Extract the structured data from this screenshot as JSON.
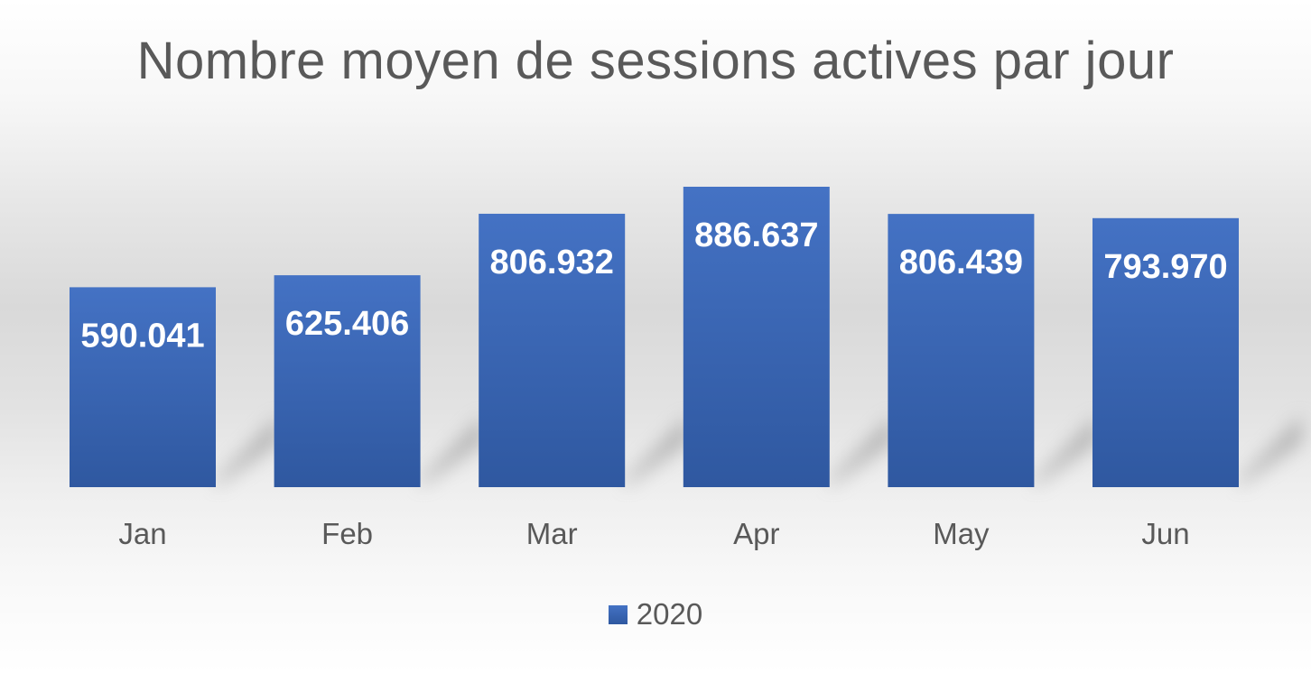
{
  "chart_data": {
    "type": "bar",
    "title": "Nombre moyen de sessions actives par jour",
    "categories": [
      "Jan",
      "Feb",
      "Mar",
      "Apr",
      "May",
      "Jun"
    ],
    "series": [
      {
        "name": "2020",
        "values": [
          590041,
          625406,
          806932,
          886637,
          806439,
          793970
        ],
        "labels": [
          "590.041",
          "625.406",
          "806.932",
          "886.637",
          "806.439",
          "793.970"
        ]
      }
    ],
    "xlabel": "",
    "ylabel": "",
    "ylim": [
      0,
      1000000
    ],
    "grid": false,
    "legend": "bottom",
    "colors": {
      "bar_top": "#4472c4",
      "bar_bottom": "#2f58a0",
      "text": "#595959",
      "label": "#ffffff"
    }
  }
}
